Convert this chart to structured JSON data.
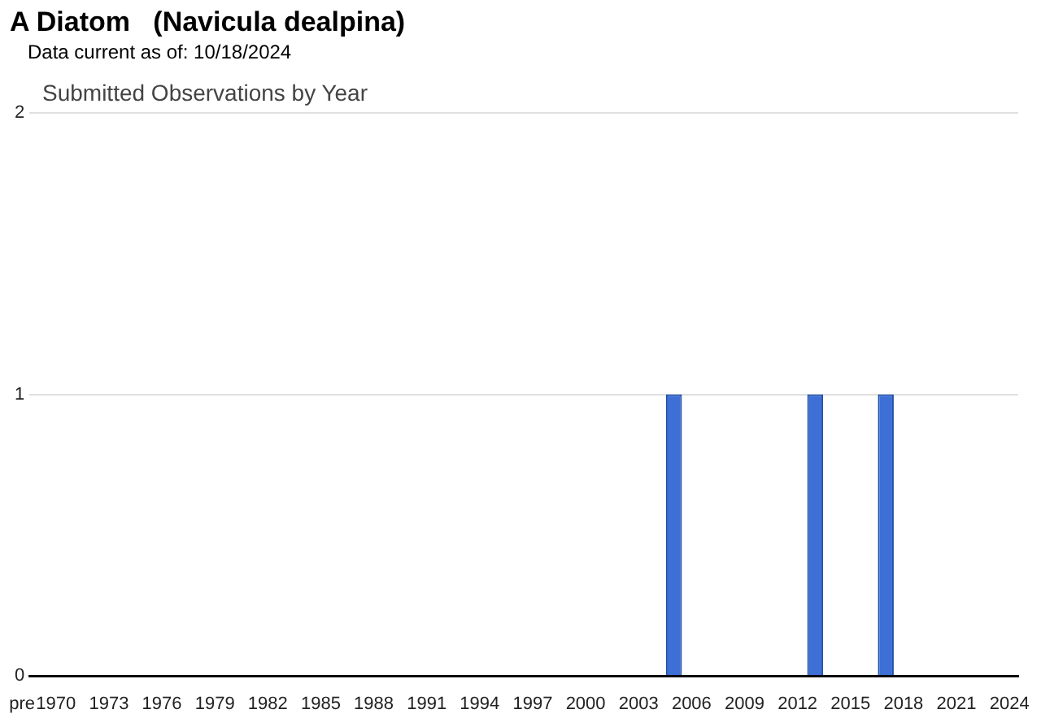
{
  "chart_data": {
    "type": "bar",
    "title": "A Diatom   (Navicula dealpina)",
    "subtitle": "Data current as of: 10/18/2024",
    "annotations": [
      "Submitted Observations by Year"
    ],
    "categories": [
      "pre",
      "1970",
      null,
      null,
      "1973",
      null,
      null,
      "1976",
      null,
      null,
      "1979",
      null,
      null,
      "1982",
      null,
      null,
      "1985",
      null,
      null,
      "1988",
      null,
      null,
      "1991",
      null,
      null,
      "1994",
      null,
      null,
      "1997",
      null,
      null,
      "2000",
      null,
      null,
      "2003",
      null,
      null,
      "2006",
      null,
      null,
      "2009",
      null,
      null,
      "2012",
      null,
      null,
      "2015",
      null,
      null,
      "2018",
      null,
      null,
      "2021",
      null,
      null,
      "2024"
    ],
    "values": [
      0,
      0,
      0,
      0,
      0,
      0,
      0,
      0,
      0,
      0,
      0,
      0,
      0,
      0,
      0,
      0,
      0,
      0,
      0,
      0,
      0,
      0,
      0,
      0,
      0,
      0,
      0,
      0,
      0,
      0,
      0,
      0,
      0,
      0,
      0,
      0,
      1,
      0,
      0,
      0,
      0,
      0,
      0,
      0,
      1,
      0,
      0,
      0,
      1,
      0,
      0,
      0,
      0,
      0,
      0,
      0
    ],
    "color": "#3d6fd6",
    "ylim": [
      0,
      2
    ],
    "yticks": [
      0,
      1,
      2
    ],
    "grid": "y",
    "legend": false
  }
}
